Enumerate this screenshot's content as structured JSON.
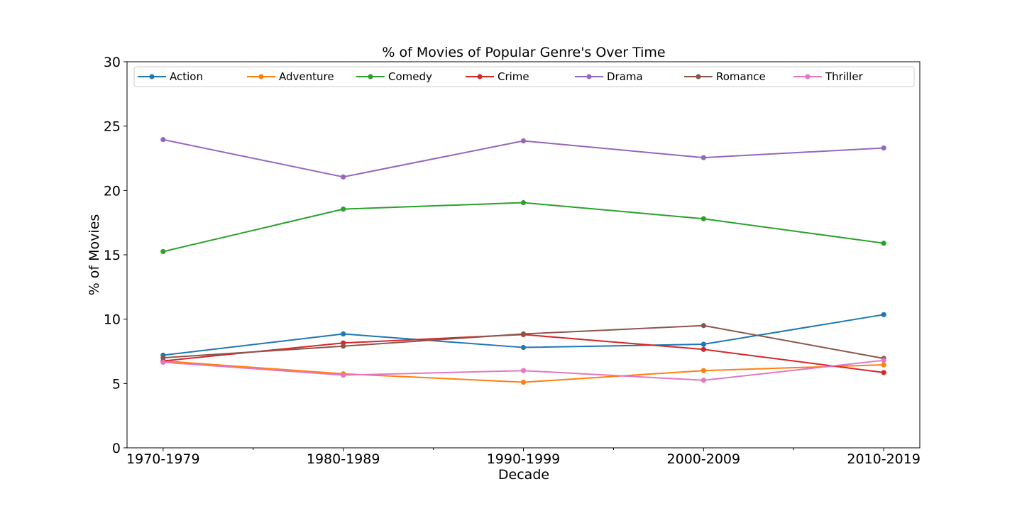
{
  "chart_data": {
    "type": "line",
    "title": "% of Movies of Popular Genre's Over Time",
    "xlabel": "Decade",
    "ylabel": "% of Movies",
    "categories": [
      "1970-1979",
      "1980-1989",
      "1990-1999",
      "2000-2009",
      "2010-2019"
    ],
    "ylim": [
      0,
      30
    ],
    "yticks": [
      0,
      5,
      10,
      15,
      20,
      25,
      30
    ],
    "grid": false,
    "legend": {
      "position": "top",
      "columns": 7
    },
    "series": [
      {
        "name": "Action",
        "color": "#1f77b4",
        "values": [
          7.2,
          8.85,
          7.8,
          8.05,
          10.35
        ]
      },
      {
        "name": "Adventure",
        "color": "#ff7f0e",
        "values": [
          6.75,
          5.75,
          5.1,
          6.0,
          6.45
        ]
      },
      {
        "name": "Comedy",
        "color": "#2ca02c",
        "values": [
          15.25,
          18.55,
          19.05,
          17.8,
          15.9
        ]
      },
      {
        "name": "Crime",
        "color": "#d62728",
        "values": [
          6.75,
          8.15,
          8.8,
          7.65,
          5.85
        ]
      },
      {
        "name": "Drama",
        "color": "#9467bd",
        "values": [
          23.95,
          21.05,
          23.85,
          22.55,
          23.3
        ]
      },
      {
        "name": "Romance",
        "color": "#8c564b",
        "values": [
          7.0,
          7.9,
          8.85,
          9.5,
          6.95
        ]
      },
      {
        "name": "Thriller",
        "color": "#e377c2",
        "values": [
          6.65,
          5.65,
          6.0,
          5.25,
          6.8
        ]
      }
    ]
  }
}
